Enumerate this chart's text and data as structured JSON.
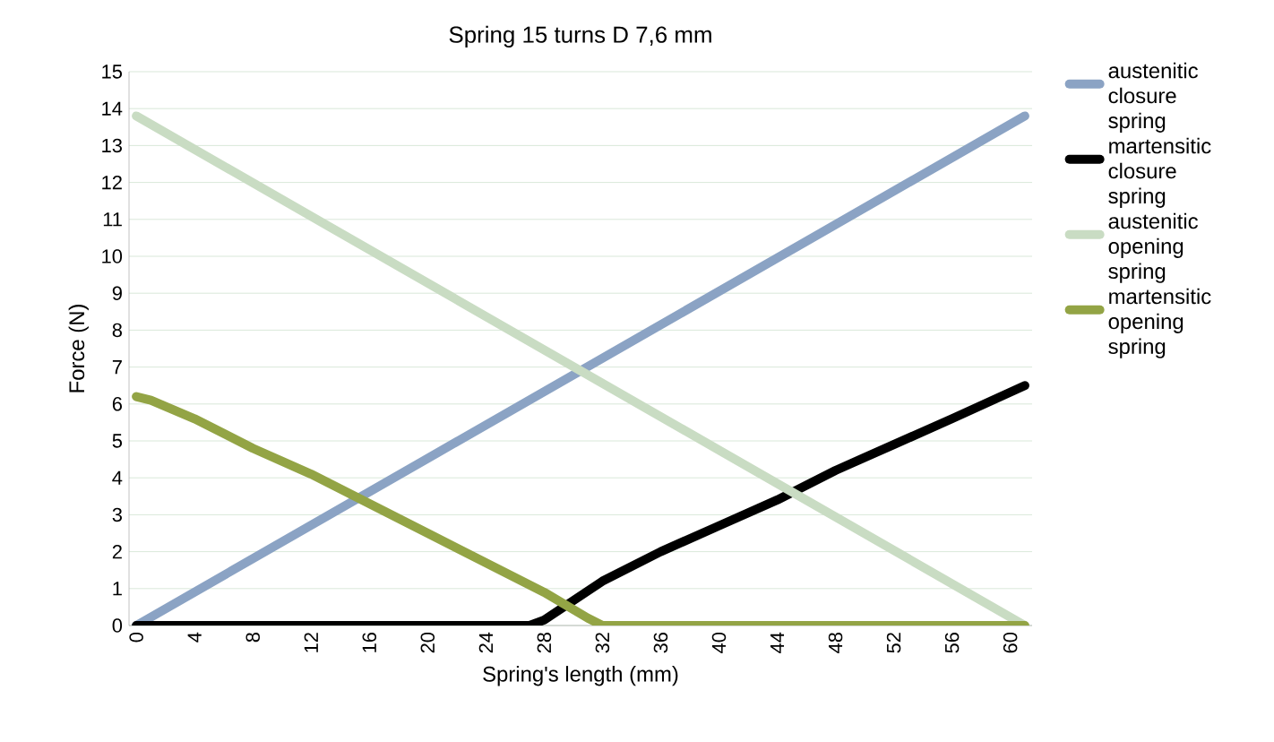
{
  "chart_data": {
    "type": "line",
    "title": "Spring 15 turns D 7,6 mm",
    "xlabel": "Spring's length (mm)",
    "ylabel": "Force  (N)",
    "xlim": [
      -0.5,
      61.5
    ],
    "xticks": [
      0,
      4,
      8,
      12,
      16,
      20,
      24,
      28,
      32,
      36,
      40,
      44,
      48,
      52,
      56,
      60
    ],
    "ylim": [
      0,
      15
    ],
    "yticks": [
      0,
      1,
      2,
      3,
      4,
      5,
      6,
      7,
      8,
      9,
      10,
      11,
      12,
      13,
      14,
      15
    ],
    "grid": "y",
    "legend": "right",
    "series": [
      {
        "name": "austenitic closure spring",
        "color": "#8ba3c4",
        "x": [
          0,
          61
        ],
        "values": [
          0,
          13.8
        ]
      },
      {
        "name": "martensitic closure spring",
        "color": "#000000",
        "x": [
          0,
          27,
          28,
          32,
          36,
          40,
          44,
          48,
          52,
          56,
          61
        ],
        "values": [
          0,
          0,
          0.15,
          1.2,
          2,
          2.7,
          3.4,
          4.2,
          4.9,
          5.6,
          6.5
        ]
      },
      {
        "name": "austenitic opening spring",
        "color": "#c9dcc3",
        "x": [
          0,
          61
        ],
        "values": [
          13.8,
          0
        ]
      },
      {
        "name": "martensitic opening spring",
        "color": "#93a445",
        "x": [
          0,
          1,
          4,
          8,
          12,
          16,
          20,
          24,
          28,
          31,
          32,
          61
        ],
        "values": [
          6.2,
          6.1,
          5.6,
          4.8,
          4.1,
          3.3,
          2.5,
          1.7,
          0.9,
          0.2,
          0,
          0
        ]
      }
    ]
  }
}
